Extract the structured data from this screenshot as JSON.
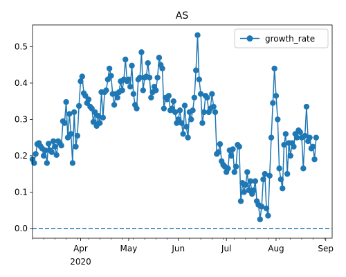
{
  "chart_data": {
    "type": "line",
    "title": "AS",
    "xlabel": "",
    "ylabel": "",
    "x_axis": {
      "type": "date",
      "range": [
        "2020-03-02",
        "2020-09-05"
      ],
      "ticks": [
        {
          "date": "2020-04-01",
          "label": "Apr",
          "sublabel": "2020"
        },
        {
          "date": "2020-05-01",
          "label": "May",
          "sublabel": ""
        },
        {
          "date": "2020-06-01",
          "label": "Jun",
          "sublabel": ""
        },
        {
          "date": "2020-07-01",
          "label": "Jul",
          "sublabel": ""
        },
        {
          "date": "2020-08-01",
          "label": "Aug",
          "sublabel": ""
        },
        {
          "date": "2020-09-01",
          "label": "Sep",
          "sublabel": ""
        }
      ]
    },
    "y_axis": {
      "range": [
        -0.027,
        0.56
      ],
      "ticks": [
        0.0,
        0.1,
        0.2,
        0.3,
        0.4,
        0.5
      ],
      "tick_labels": [
        "0.0",
        "0.1",
        "0.2",
        "0.3",
        "0.4",
        "0.5"
      ]
    },
    "legend": {
      "position": "top-right"
    },
    "grid": false,
    "colors": {
      "series": "#1f77b4"
    },
    "series": [
      {
        "name": "growth_rate",
        "start_date": "2020-03-02",
        "values": [
          0.19,
          0.18,
          0.205,
          0.232,
          0.235,
          0.226,
          0.22,
          0.2,
          0.215,
          0.18,
          0.233,
          0.215,
          0.21,
          0.24,
          0.225,
          0.202,
          0.24,
          0.235,
          0.228,
          0.295,
          0.29,
          0.348,
          0.25,
          0.315,
          0.26,
          0.18,
          0.32,
          0.225,
          0.255,
          0.337,
          0.405,
          0.418,
          0.372,
          0.365,
          0.345,
          0.355,
          0.335,
          0.33,
          0.293,
          0.32,
          0.282,
          0.31,
          0.29,
          0.375,
          0.305,
          0.375,
          0.38,
          0.41,
          0.44,
          0.42,
          0.37,
          0.34,
          0.37,
          0.36,
          0.375,
          0.405,
          0.38,
          0.41,
          0.465,
          0.405,
          0.41,
          0.39,
          0.448,
          0.37,
          0.34,
          0.33,
          0.41,
          0.415,
          0.485,
          0.38,
          0.415,
          0.418,
          0.455,
          0.415,
          0.36,
          0.375,
          0.39,
          0.38,
          0.415,
          0.47,
          0.45,
          0.44,
          0.33,
          0.36,
          0.355,
          0.365,
          0.325,
          0.33,
          0.35,
          0.32,
          0.29,
          0.3,
          0.325,
          0.29,
          0.26,
          0.338,
          0.28,
          0.25,
          0.32,
          0.3,
          0.325,
          0.36,
          0.435,
          0.532,
          0.41,
          0.37,
          0.29,
          0.32,
          0.365,
          0.36,
          0.32,
          0.33,
          0.37,
          0.335,
          0.32,
          0.205,
          0.21,
          0.232,
          0.185,
          0.175,
          0.17,
          0.155,
          0.165,
          0.215,
          0.2,
          0.218,
          0.155,
          0.17,
          0.23,
          0.225,
          0.075,
          0.125,
          0.1,
          0.12,
          0.155,
          0.105,
          0.13,
          0.095,
          0.105,
          0.13,
          0.075,
          0.065,
          0.025,
          0.06,
          0.135,
          0.15,
          0.055,
          0.035,
          0.145,
          0.25,
          0.345,
          0.44,
          0.365,
          0.3,
          0.165,
          0.135,
          0.11,
          0.23,
          0.26,
          0.15,
          0.235,
          0.2,
          0.235,
          0.225,
          0.26,
          0.25,
          0.27,
          0.265,
          0.25,
          0.165,
          0.255,
          0.335,
          0.24,
          0.25,
          0.22,
          0.225,
          0.19,
          0.25
        ]
      }
    ],
    "reference_line": {
      "y": 0.0,
      "style": "dashed"
    }
  }
}
